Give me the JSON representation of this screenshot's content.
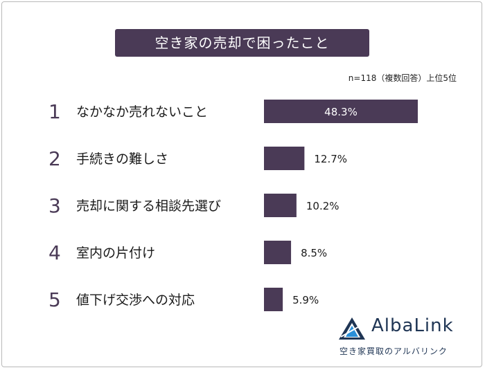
{
  "title": "空き家の売却で困ったこと",
  "note": "n=118（複数回答）上位5位",
  "colors": {
    "bar": "#4a3a56",
    "title_bg": "#4a3a56",
    "logo": "#1f3554",
    "logo_accent": "#2a8fd8"
  },
  "chart_data": {
    "type": "bar",
    "orientation": "horizontal",
    "categories": [
      "なかなか売れないこと",
      "手続きの難しさ",
      "売却に関する相談先選び",
      "室内の片付け",
      "値下げ交渉への対応"
    ],
    "ranks": [
      "1",
      "2",
      "3",
      "4",
      "5"
    ],
    "values": [
      48.3,
      12.7,
      10.2,
      8.5,
      5.9
    ],
    "value_labels": [
      "48.3%",
      "12.7%",
      "10.2%",
      "8.5%",
      "5.9%"
    ],
    "unit": "%",
    "xlim": [
      0,
      48.3
    ]
  },
  "logo": {
    "icon": "albalink-triangle-logo-icon",
    "wordmark": "AlbaLink",
    "tagline": "空き家買取のアルバリンク"
  }
}
